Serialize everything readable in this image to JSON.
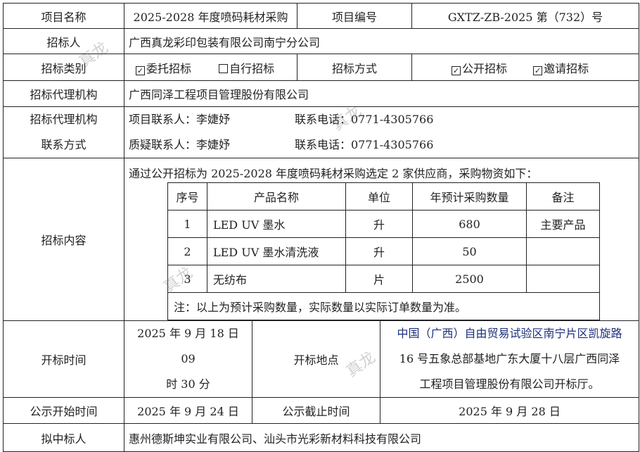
{
  "project_name": {
    "label": "项目名称",
    "value": "2025-2028 年度喷码耗材采购"
  },
  "project_no": {
    "label": "项目编号",
    "value": "GXTZ-ZB-2025 第（732）号"
  },
  "tenderer": {
    "label": "招标人",
    "value": "广西真龙彩印包装有限公司南宁分公司"
  },
  "tender_category": {
    "label": "招标类别",
    "options": [
      {
        "label": "委托招标",
        "checked": true
      },
      {
        "label": "自行招标",
        "checked": false
      }
    ]
  },
  "tender_method": {
    "label": "招标方式",
    "options": [
      {
        "label": "公开招标",
        "checked": true
      },
      {
        "label": "邀请招标",
        "checked": true
      }
    ]
  },
  "agency": {
    "label": "招标代理机构",
    "value": "广西同泽工程项目管理股份有限公司"
  },
  "agency_contact": {
    "label1": "招标代理机构",
    "label2": "联系方式",
    "project_contact": "项目联系人：李婕妤",
    "project_phone": "联系电话：0771-4305766",
    "query_contact": "质疑联系人：李婕妤",
    "query_phone": "联系电话：0771-4305766"
  },
  "content": {
    "label": "招标内容",
    "intro": "通过公开招标为 2025-2028 年度喷码耗材采购选定 2 家供应商，采购物资如下：",
    "headers": [
      "序号",
      "产品名称",
      "单位",
      "年预计采购数量",
      "备注"
    ],
    "rows": [
      [
        "1",
        "LED UV 墨水",
        "升",
        "680",
        "主要产品"
      ],
      [
        "2",
        "LED UV 墨水清洗液",
        "升",
        "50",
        ""
      ],
      [
        "3",
        "无纺布",
        "片",
        "2500",
        ""
      ]
    ],
    "note": "注：以上为预计采购数量，实际数量以实际订单数量为准。"
  },
  "opening": {
    "time_label": "开标时间",
    "time_line1": "2025 年 9 月 18 日 09",
    "time_line2": "时 30 分",
    "place_label": "开标地点",
    "place_line1": "中国（广西）自由贸易试验区南宁片区凯旋路",
    "place_line2": "16 号五象总部基地广东大厦十八层广西同泽",
    "place_line3": "工程项目管理股份有限公司开标厅。"
  },
  "publicity": {
    "start_label": "公示开始时间",
    "start": "2025 年 9 月 24 日",
    "end_label": "公示截止时间",
    "end": "2025 年 9 月 28 日"
  },
  "winner": {
    "label": "拟中标人",
    "value": "惠州德斯坤实业有限公司、汕头市光彩新材料科技有限公司"
  },
  "watermark": "真龙",
  "check_mark": "✓"
}
